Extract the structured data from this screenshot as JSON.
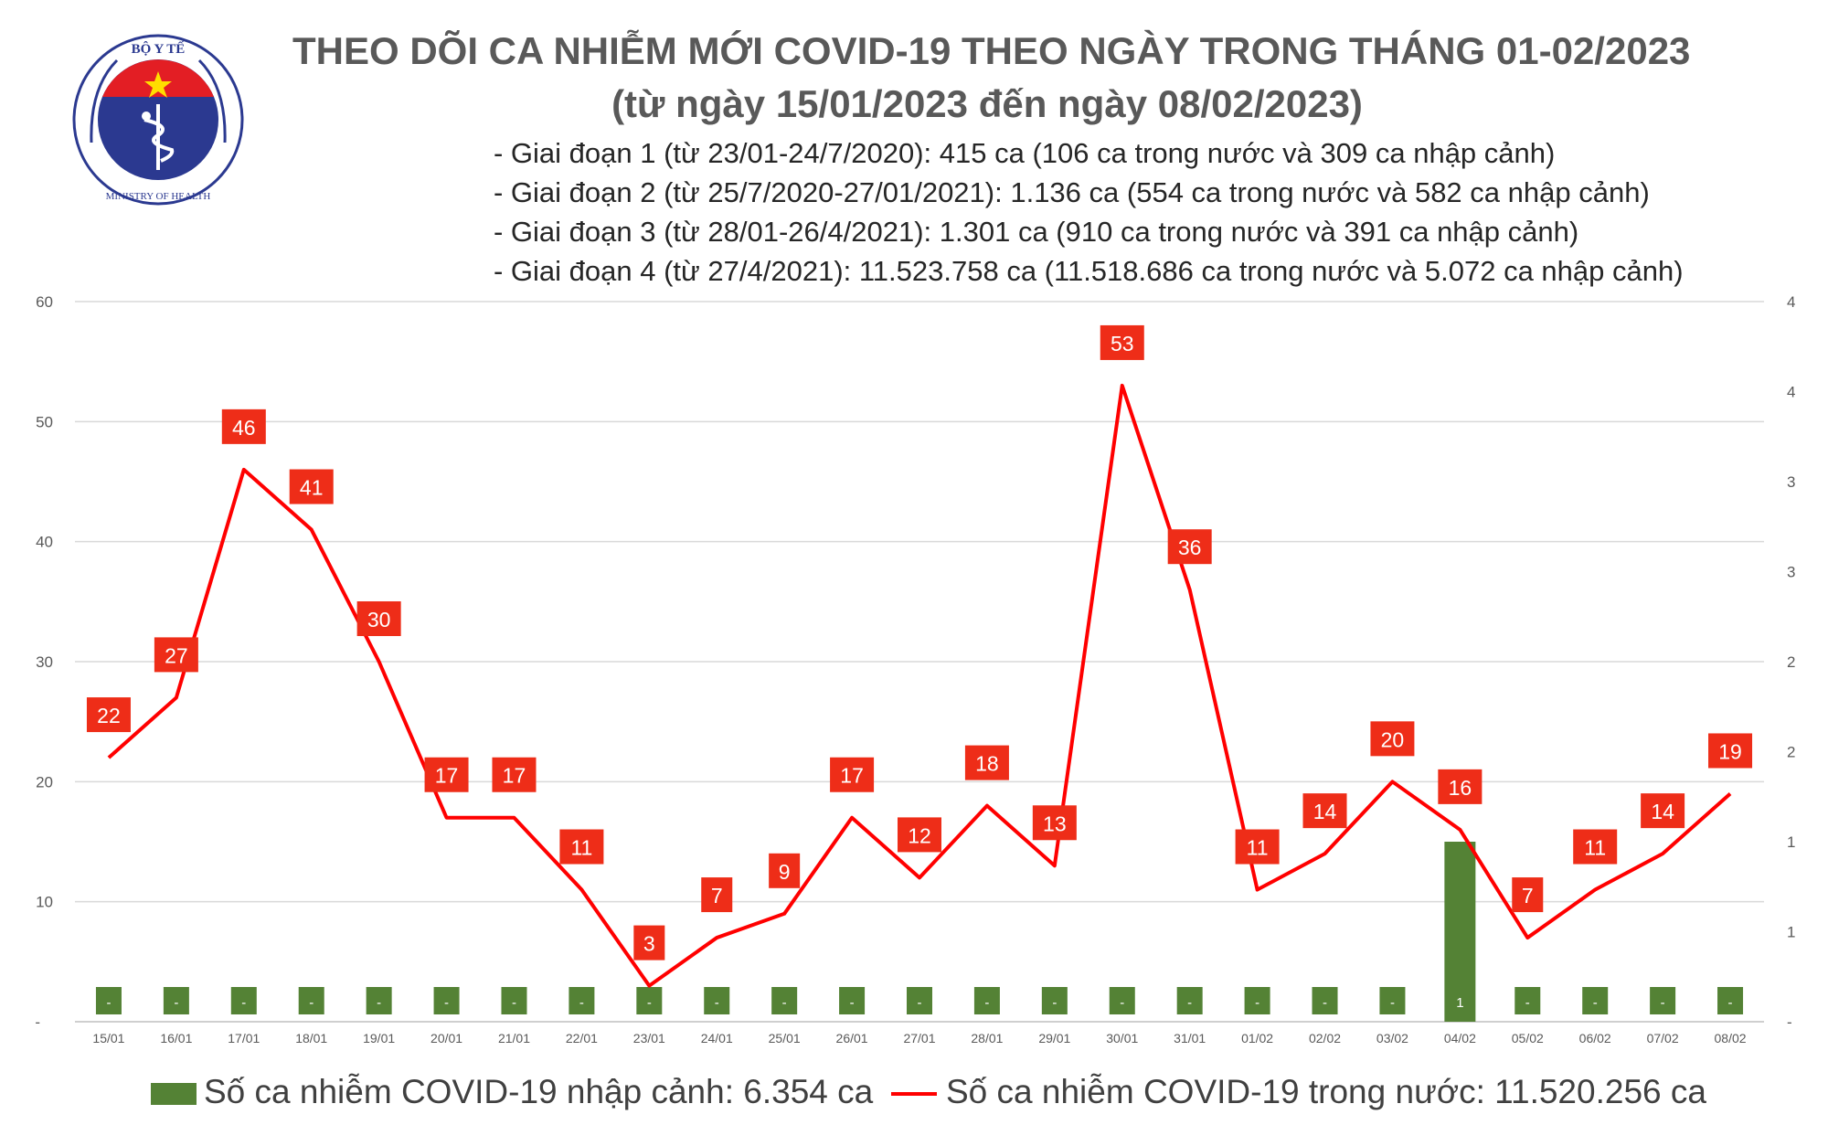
{
  "logo": {
    "text_top": "BỘ Y TẾ",
    "text_bottom": "MINISTRY OF HEALTH"
  },
  "header": {
    "title_line1": "THEO DÕI CA NHIỄM MỚI COVID-19 THEO NGÀY TRONG THÁNG 01-02/2023",
    "title_line2": "(từ ngày 15/01/2023 đến ngày 08/02/2023)",
    "phases": [
      "- Giai đoạn 1 (từ 23/01-24/7/2020): 415 ca (106 ca trong nước và 309 ca nhập cảnh)",
      "- Giai đoạn 2 (từ 25/7/2020-27/01/2021): 1.136 ca (554 ca trong nước và 582 ca nhập cảnh)",
      "- Giai đoạn 3 (từ 28/01-26/4/2021): 1.301 ca (910 ca trong nước và 391 ca nhập cảnh)",
      "- Giai đoạn 4 (từ 27/4/2021): 11.523.758 ca (11.518.686 ca trong nước và 5.072 ca nhập cảnh)"
    ]
  },
  "legend": {
    "import_label": "Số ca nhiễm COVID-19 nhập cảnh: 6.354 ca",
    "domestic_label": "Số ca nhiễm COVID-19 trong nước: 11.520.256 ca"
  },
  "chart_data": {
    "type": "bar+line",
    "categories": [
      "15/01",
      "16/01",
      "17/01",
      "18/01",
      "19/01",
      "20/01",
      "21/01",
      "22/01",
      "23/01",
      "24/01",
      "25/01",
      "26/01",
      "27/01",
      "28/01",
      "29/01",
      "30/01",
      "31/01",
      "01/02",
      "02/02",
      "03/02",
      "04/02",
      "05/02",
      "06/02",
      "07/02",
      "08/02"
    ],
    "series": [
      {
        "name": "Số ca nhiễm COVID-19 trong nước",
        "type": "line",
        "axis": "left",
        "color": "#ff0000",
        "values": [
          22,
          27,
          46,
          41,
          30,
          17,
          17,
          11,
          3,
          7,
          9,
          17,
          12,
          18,
          13,
          53,
          36,
          11,
          14,
          20,
          16,
          7,
          11,
          14,
          19
        ]
      },
      {
        "name": "Số ca nhiễm COVID-19 nhập cảnh",
        "type": "bar",
        "axis": "right",
        "color": "#548235",
        "values": [
          0,
          0,
          0,
          0,
          0,
          0,
          0,
          0,
          0,
          0,
          0,
          0,
          0,
          0,
          0,
          0,
          0,
          0,
          0,
          0,
          1,
          0,
          0,
          0,
          0
        ],
        "data_labels": [
          "-",
          "-",
          "-",
          "-",
          "-",
          "-",
          "-",
          "-",
          "-",
          "-",
          "-",
          "-",
          "-",
          "-",
          "-",
          "-",
          "-",
          "-",
          "-",
          "-",
          "1",
          "-",
          "-",
          "-",
          "-"
        ]
      }
    ],
    "y_left": {
      "min": 0,
      "max": 60,
      "ticks": [
        60,
        50,
        40,
        30,
        20,
        10
      ],
      "zero_label": "-"
    },
    "y_right": {
      "min": 0,
      "max": 4,
      "tick_labels": [
        "4",
        "4",
        "3",
        "3",
        "2",
        "2",
        "1",
        "1"
      ],
      "zero_label": "-"
    },
    "grid": true
  }
}
